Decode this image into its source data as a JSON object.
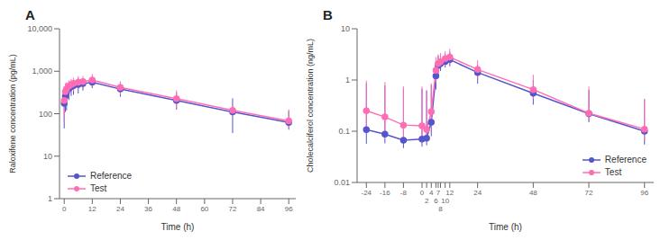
{
  "chart_data": [
    {
      "type": "line",
      "title": "A",
      "xlabel": "Time (h)",
      "ylabel": "Raloxifene concentration (pg/mL)",
      "x": [
        0,
        0.5,
        1,
        2,
        3,
        4,
        6,
        8,
        12,
        24,
        48,
        72,
        96
      ],
      "xlim": [
        -2,
        99
      ],
      "xticks": [
        0,
        12,
        24,
        36,
        48,
        60,
        72,
        84,
        96
      ],
      "ylim": [
        1,
        10000
      ],
      "yticks": [
        1,
        10,
        100,
        {
          "value": 1000,
          "label": "1,000"
        },
        {
          "value": 10000,
          "label": "10,000"
        }
      ],
      "log": "y",
      "grid": false,
      "legend": "lower left",
      "marker": "circle",
      "line_style": "solid",
      "series": [
        {
          "name": "Reference",
          "color": "#5555cc",
          "values": [
            175,
            260,
            320,
            390,
            430,
            460,
            490,
            510,
            550,
            380,
            205,
            110,
            62
          ],
          "yerr_lo": [
            130,
            150,
            200,
            180,
            170,
            180,
            190,
            160,
            150,
            130,
            80,
            75,
            20
          ],
          "yerr_hi": [
            220,
            180,
            160,
            150,
            150,
            160,
            200,
            170,
            180,
            150,
            110,
            120,
            55
          ]
        },
        {
          "name": "Test",
          "color": "#ff6eb4",
          "values": [
            205,
            330,
            380,
            450,
            490,
            520,
            550,
            570,
            620,
            415,
            225,
            120,
            68
          ],
          "yerr_lo": [
            140,
            160,
            170,
            160,
            160,
            180,
            180,
            170,
            190,
            130,
            90,
            12,
            22
          ],
          "yerr_hi": [
            230,
            190,
            170,
            160,
            160,
            180,
            220,
            200,
            240,
            160,
            130,
            28,
            58
          ]
        }
      ]
    },
    {
      "type": "line",
      "title": "B",
      "xlabel": "Time (h)",
      "ylabel": "Cholecalciferol concentration (ng/mL)",
      "x": [
        -24,
        -16,
        -8,
        0,
        2,
        4,
        6,
        7,
        8,
        10,
        12,
        24,
        48,
        72,
        96
      ],
      "xlim": [
        -28,
        100
      ],
      "xticks": [
        -24,
        -16,
        -8,
        0,
        2,
        4,
        6,
        7,
        8,
        10,
        12,
        24,
        48,
        72,
        96
      ],
      "ylim": [
        0.01,
        10
      ],
      "yticks": [
        0.01,
        0.1,
        1,
        10
      ],
      "log": "y",
      "grid": false,
      "legend": "lower right",
      "marker": "circle",
      "line_style": "solid",
      "series": [
        {
          "name": "Reference",
          "color": "#5555cc",
          "values": [
            0.107,
            0.088,
            0.067,
            0.07,
            0.073,
            0.15,
            1.2,
            1.9,
            2.1,
            2.3,
            2.5,
            1.4,
            0.55,
            0.22,
            0.1
          ],
          "yerr_lo": [
            0.05,
            0.03,
            0.02,
            0.02,
            0.02,
            0.07,
            0.55,
            0.6,
            0.6,
            0.55,
            0.65,
            0.55,
            0.22,
            0.07,
            0.045
          ],
          "yerr_hi": [
            0.75,
            0.7,
            0.6,
            0.6,
            0.55,
            0.65,
            1.1,
            1.1,
            0.9,
            0.95,
            1.05,
            0.55,
            0.45,
            0.42,
            0.32
          ]
        },
        {
          "name": "Test",
          "color": "#ff6eb4",
          "values": [
            0.25,
            0.19,
            0.132,
            0.128,
            0.108,
            0.24,
            1.55,
            2.1,
            2.3,
            2.6,
            2.8,
            1.6,
            0.65,
            0.225,
            0.11
          ],
          "yerr_lo": [
            0.14,
            0.1,
            0.06,
            0.05,
            0.04,
            0.11,
            0.65,
            0.55,
            0.55,
            0.7,
            0.85,
            0.52,
            0.22,
            0.065,
            0.042
          ],
          "yerr_hi": [
            0.72,
            0.72,
            0.62,
            0.62,
            0.52,
            0.62,
            1.25,
            1.05,
            1.05,
            1.05,
            1.25,
            0.82,
            0.62,
            0.52,
            0.32
          ]
        }
      ]
    }
  ]
}
